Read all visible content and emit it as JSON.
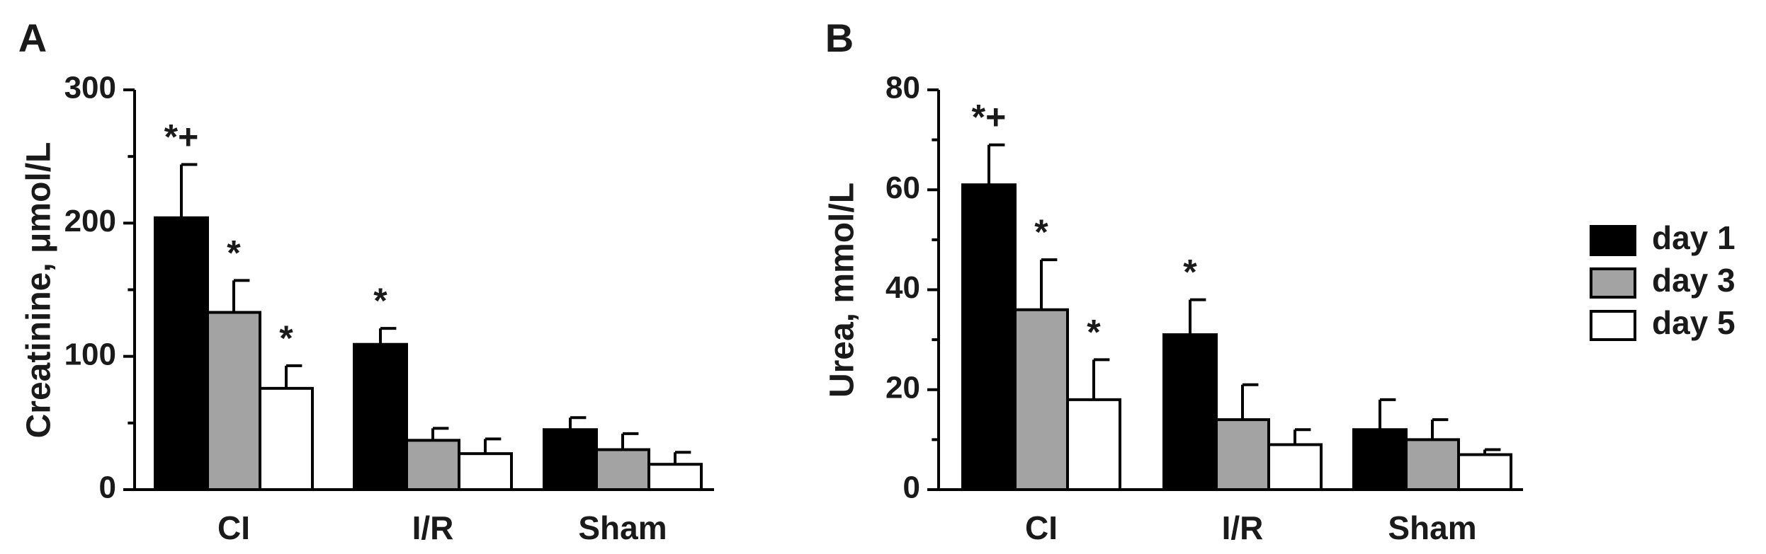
{
  "colors": {
    "day1": "#000000",
    "day3": "#a3a3a3",
    "day5": "#ffffff",
    "stroke": "#000000"
  },
  "legend": {
    "items": [
      "day 1",
      "day 3",
      "day 5"
    ]
  },
  "chart_data": [
    {
      "type": "bar",
      "panel": "A",
      "ylabel": "Creatinine, μmol/L",
      "ylim": [
        0,
        300
      ],
      "yticks": [
        0,
        100,
        200,
        300
      ],
      "categories": [
        "CI",
        "I/R",
        "Sham"
      ],
      "series": [
        {
          "name": "day 1",
          "values": [
            204,
            109,
            45
          ],
          "errors": [
            40,
            12,
            9
          ]
        },
        {
          "name": "day 3",
          "values": [
            133,
            37,
            30
          ],
          "errors": [
            24,
            9,
            12
          ]
        },
        {
          "name": "day 5",
          "values": [
            76,
            27,
            19
          ],
          "errors": [
            17,
            11,
            9
          ]
        }
      ],
      "annotations": [
        {
          "category": "CI",
          "series": "day 1",
          "text": "*+"
        },
        {
          "category": "CI",
          "series": "day 3",
          "text": "*"
        },
        {
          "category": "CI",
          "series": "day 5",
          "text": "*"
        },
        {
          "category": "I/R",
          "series": "day 1",
          "text": "*"
        }
      ]
    },
    {
      "type": "bar",
      "panel": "B",
      "ylabel": "Urea, mmol/L",
      "ylim": [
        0,
        80
      ],
      "yticks": [
        0,
        20,
        40,
        60,
        80
      ],
      "categories": [
        "CI",
        "I/R",
        "Sham"
      ],
      "series": [
        {
          "name": "day 1",
          "values": [
            61,
            31,
            12
          ],
          "errors": [
            8,
            7,
            6
          ]
        },
        {
          "name": "day 3",
          "values": [
            36,
            14,
            10
          ],
          "errors": [
            10,
            7,
            4
          ]
        },
        {
          "name": "day 5",
          "values": [
            18,
            9,
            7
          ],
          "errors": [
            8,
            3,
            1
          ]
        }
      ],
      "annotations": [
        {
          "category": "CI",
          "series": "day 1",
          "text": "*+"
        },
        {
          "category": "CI",
          "series": "day 3",
          "text": "*"
        },
        {
          "category": "CI",
          "series": "day 5",
          "text": "*"
        },
        {
          "category": "I/R",
          "series": "day 1",
          "text": "*"
        }
      ]
    }
  ]
}
